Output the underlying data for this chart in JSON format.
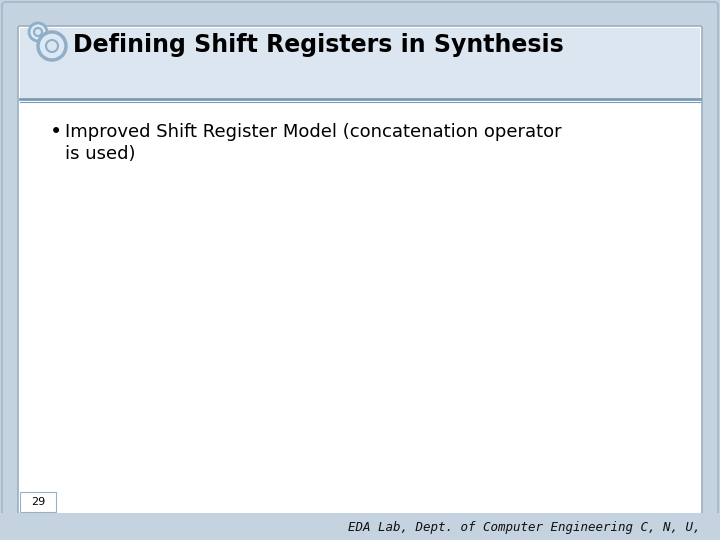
{
  "title": "Defining Shift Registers in Synthesis",
  "bullet_text_line1": "Improved Shift Register Model (concatenation operator",
  "bullet_text_line2": "is used)",
  "page_number": "29",
  "footer_text": "EDA Lab, Dept. of Computer Engineering C, N, U,",
  "outer_bg_color": "#c5d3e0",
  "inner_bg_color": "#ffffff",
  "header_bg_color": "#dce6f0",
  "content_bg_color": "#edf2f8",
  "title_color": "#000000",
  "title_fontsize": 17,
  "bullet_fontsize": 13,
  "footer_fontsize": 9,
  "page_num_fontsize": 8,
  "header_line_color": "#7a9ab5",
  "border_color_outer": "#aabccc",
  "border_color_inner": "#9aafc0",
  "icon_outer_color": "#8faec8",
  "icon_fill_color": "#dce8f5"
}
